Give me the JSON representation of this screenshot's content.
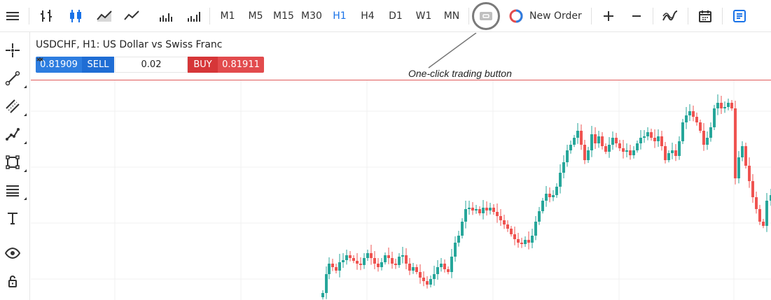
{
  "toolbar": {
    "menu_icon": "hamburger-menu-icon",
    "chart_types": [
      "bars-chart-icon",
      "candles-chart-icon",
      "area-chart-icon",
      "line-chart-icon",
      "volume-bars-icon",
      "volume-ticks-icon"
    ],
    "timeframes": [
      {
        "label": "M1",
        "active": false
      },
      {
        "label": "M5",
        "active": false
      },
      {
        "label": "M15",
        "active": false
      },
      {
        "label": "M30",
        "active": false
      },
      {
        "label": "H1",
        "active": true
      },
      {
        "label": "H4",
        "active": false
      },
      {
        "label": "D1",
        "active": false
      },
      {
        "label": "W1",
        "active": false
      },
      {
        "label": "MN",
        "active": false
      }
    ],
    "one_click_icon": "one-click-trading-icon",
    "new_order_label": "New Order",
    "zoom_in_icon": "plus-icon",
    "zoom_out_icon": "minus-icon",
    "indicators_icon": "indicators-icon",
    "calendar_icon": "calendar-icon",
    "details_icon": "document-icon"
  },
  "left_tools": [
    "crosshair-icon",
    "line-tool-icon",
    "channel-tool-icon",
    "polyline-tool-icon",
    "shapes-tool-icon",
    "fibonacci-tool-icon",
    "text-tool-icon",
    "eye-icon",
    "lock-icon"
  ],
  "chart": {
    "title": "USDCHF, H1: US Dollar vs Swiss Franc",
    "sell_price": "0.81909",
    "sell_label": "SELL",
    "volume": "0.02",
    "buy_label": "BUY",
    "buy_price": "0.81911",
    "annotation": "One-click trading button"
  },
  "colors": {
    "accent": "#1a73e8",
    "sell": "#2d7de0",
    "buy": "#e24b4d",
    "bull_candle": "#26a69a",
    "bear_candle": "#ef5350",
    "price_line": "#e05a5a"
  }
}
